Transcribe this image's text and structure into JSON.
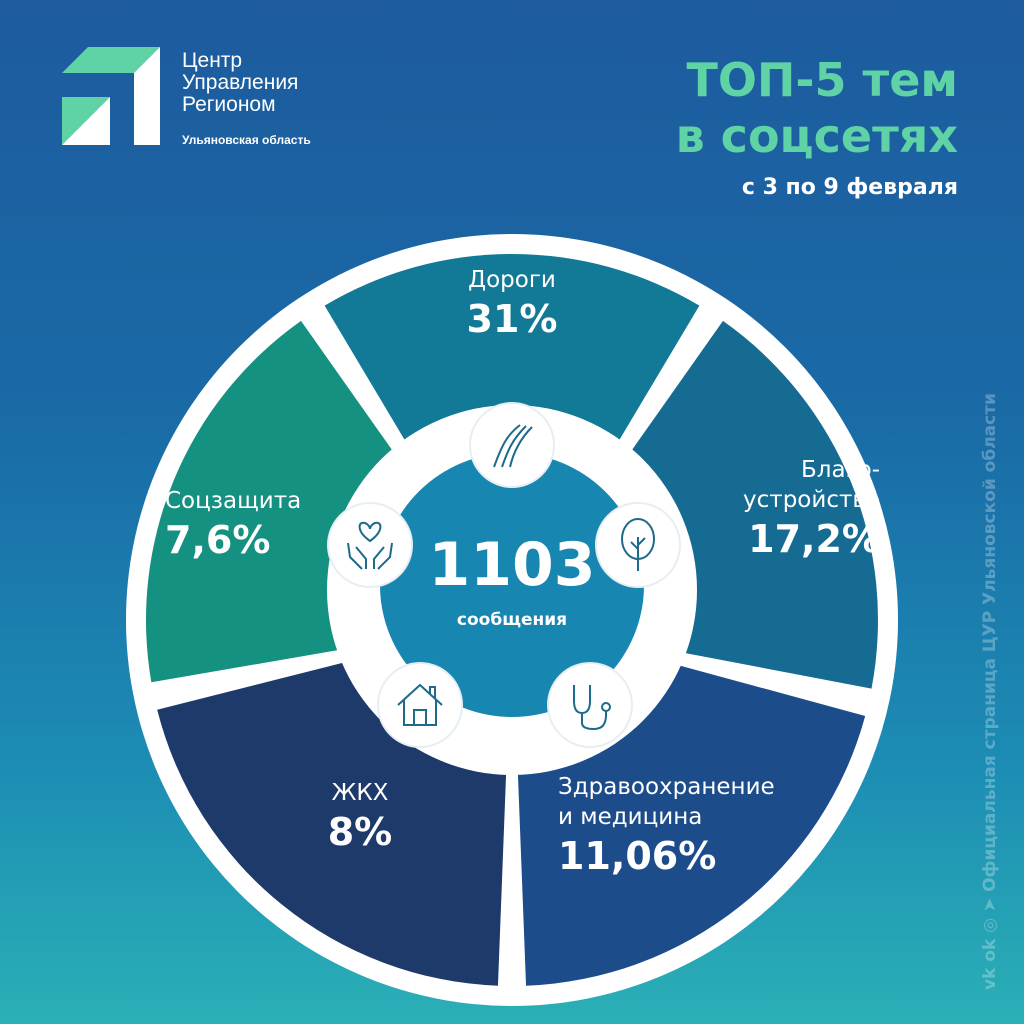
{
  "logo": {
    "line1": "Центр",
    "line2": "Управления",
    "line3": "Регионом",
    "subtitle": "Ульяновская область"
  },
  "header": {
    "title_line1": "ТОП-5 тем",
    "title_line2": "в соцсетях",
    "dates": "с 3 по 9 февраля"
  },
  "center": {
    "total": "1103",
    "unit": "сообщения"
  },
  "footer": {
    "vertical_text": "Официальная страница ЦУР Ульяновской области",
    "icons": [
      "telegram-icon",
      "instagram-icon",
      "ok-icon",
      "vk-icon"
    ]
  },
  "chart_data": {
    "type": "pie",
    "title": "ТОП-5 тем в соцсетях",
    "categories": [
      "Дороги",
      "Благо-устройство",
      "Здравоохранение и медицина",
      "ЖКХ",
      "Соцзащита"
    ],
    "values": [
      31,
      17.2,
      11.06,
      8,
      7.6
    ],
    "labels": [
      "31%",
      "17,2%",
      "11,06%",
      "8%",
      "7,6%"
    ],
    "icons": [
      "road-icon",
      "tree-icon",
      "stethoscope-icon",
      "house-icon",
      "heart-hands-icon"
    ],
    "colors": [
      "#127a96",
      "#166b93",
      "#1c4d8a",
      "#1d3a6b",
      "#149180"
    ]
  }
}
